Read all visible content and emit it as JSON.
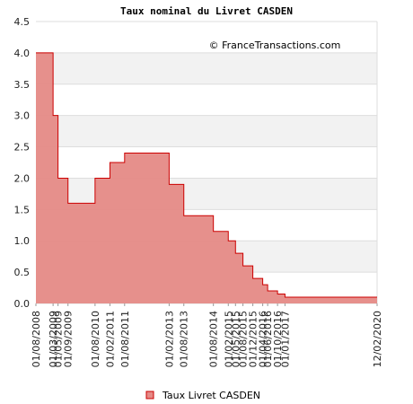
{
  "chart_data": {
    "type": "area",
    "title": "Taux nominal du Livret CASDEN",
    "credit": "© FranceTransactions.com",
    "ylim": [
      0,
      4.5
    ],
    "y_ticks": [
      "0.0",
      "0.5",
      "1.0",
      "1.5",
      "2.0",
      "2.5",
      "3.0",
      "3.5",
      "4.0",
      "4.5"
    ],
    "x_labels": [
      "01/08/2008",
      "01/03/2009",
      "01/05/2009",
      "01/09/2009",
      "01/08/2010",
      "01/02/2011",
      "01/08/2011",
      "01/02/2013",
      "01/08/2013",
      "01/08/2014",
      "01/02/2015",
      "01/05/2015",
      "01/08/2015",
      "01/12/2015",
      "01/04/2016",
      "01/06/2016",
      "01/10/2016",
      "01/01/2017",
      "12/02/2020"
    ],
    "step": "post",
    "grid": "horizontal bands",
    "legend_position": "bottom-center",
    "series": [
      {
        "name": "Taux Livret CASDEN",
        "color": "#e58a86",
        "line_color": "#cc0000",
        "x": [
          "01/08/2008",
          "01/03/2009",
          "01/05/2009",
          "01/09/2009",
          "01/08/2010",
          "01/02/2011",
          "01/08/2011",
          "01/02/2013",
          "01/08/2013",
          "01/08/2014",
          "01/02/2015",
          "01/05/2015",
          "01/08/2015",
          "01/12/2015",
          "01/04/2016",
          "01/06/2016",
          "01/10/2016",
          "01/01/2017",
          "12/02/2020"
        ],
        "values": [
          4.0,
          3.0,
          2.0,
          1.6,
          2.0,
          2.25,
          2.4,
          1.9,
          1.4,
          1.15,
          1.0,
          0.8,
          0.6,
          0.4,
          0.3,
          0.2,
          0.15,
          0.1,
          0.1
        ]
      }
    ]
  }
}
